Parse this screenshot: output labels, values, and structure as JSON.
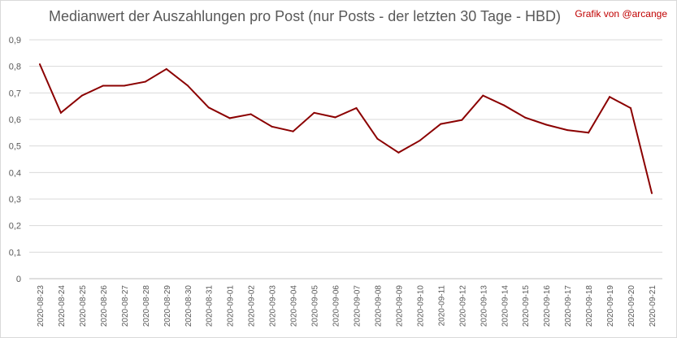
{
  "chart_data": {
    "type": "line",
    "title": "Medianwert der Auszahlungen pro Post (nur Posts - der letzten 30 Tage - HBD)",
    "credit": "Grafik von @arcange",
    "xlabel": "",
    "ylabel": "",
    "ylim": [
      0,
      0.9
    ],
    "yticks": [
      "0",
      "0,1",
      "0,2",
      "0,3",
      "0,4",
      "0,5",
      "0,6",
      "0,7",
      "0,8",
      "0,9"
    ],
    "grid": true,
    "line_color": "#8b0000",
    "categories": [
      "2020-08-23",
      "2020-08-24",
      "2020-08-25",
      "2020-08-26",
      "2020-08-27",
      "2020-08-28",
      "2020-08-29",
      "2020-08-30",
      "2020-08-31",
      "2020-09-01",
      "2020-09-02",
      "2020-09-03",
      "2020-09-04",
      "2020-09-05",
      "2020-09-06",
      "2020-09-07",
      "2020-09-08",
      "2020-09-09",
      "2020-09-10",
      "2020-09-11",
      "2020-09-12",
      "2020-09-13",
      "2020-09-14",
      "2020-09-15",
      "2020-09-16",
      "2020-09-17",
      "2020-09-18",
      "2020-09-19",
      "2020-09-20",
      "2020-09-21"
    ],
    "values": [
      0.808,
      0.625,
      0.69,
      0.727,
      0.727,
      0.742,
      0.79,
      0.728,
      0.645,
      0.605,
      0.62,
      0.573,
      0.555,
      0.625,
      0.608,
      0.643,
      0.527,
      0.475,
      0.52,
      0.583,
      0.598,
      0.69,
      0.653,
      0.607,
      0.58,
      0.56,
      0.55,
      0.685,
      0.643,
      0.322
    ]
  }
}
